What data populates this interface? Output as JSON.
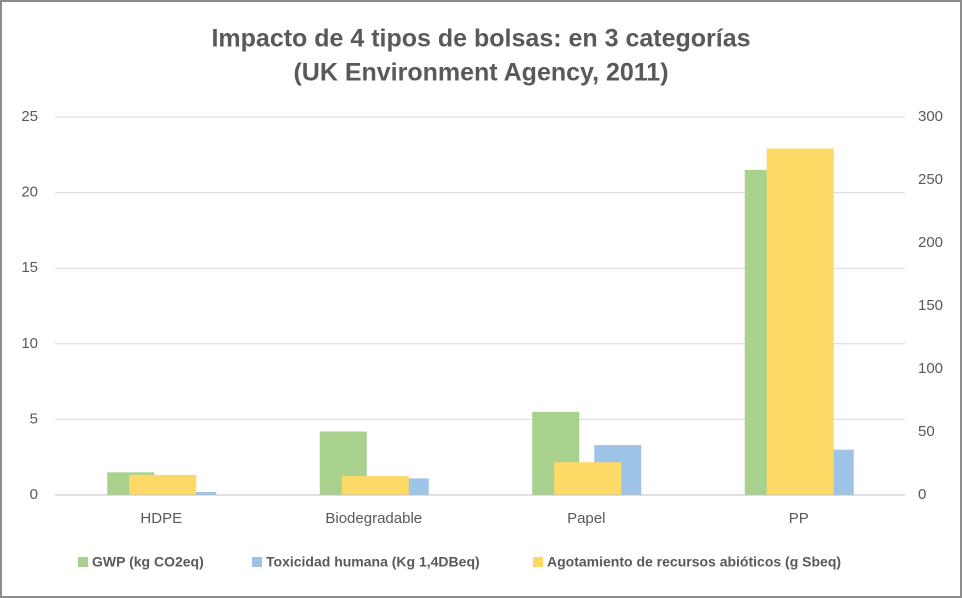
{
  "chart_data": {
    "type": "bar",
    "title": "Impacto de 4 tipos de bolsas: en 3 categorías",
    "subtitle": "(UK Environment Agency, 2011)",
    "categories": [
      "HDPE",
      "Biodegradable",
      "Papel",
      "PP"
    ],
    "series": [
      {
        "name": "GWP (kg CO2eq)",
        "color": "#a9d18e",
        "values": [
          1.5,
          4.2,
          5.5,
          21.5
        ]
      },
      {
        "name": "Toxicidad humana (Kg 1,4DBeq)",
        "color": "#9dc3e6",
        "values": [
          0.2,
          1.1,
          3.3,
          3.0
        ]
      },
      {
        "name": "Agotamiento de recursos abióticos (g Sbeq)",
        "color": "#ffd966",
        "values": [
          16,
          15,
          26,
          275
        ],
        "axis": "y2"
      }
    ],
    "ylim": [
      0,
      25
    ],
    "yticks": [
      0,
      5,
      10,
      15,
      20,
      25
    ],
    "y2lim": [
      0,
      300
    ],
    "y2ticks": [
      0,
      50,
      100,
      150,
      200,
      250,
      300
    ],
    "grid": true,
    "legend": "bottom"
  }
}
